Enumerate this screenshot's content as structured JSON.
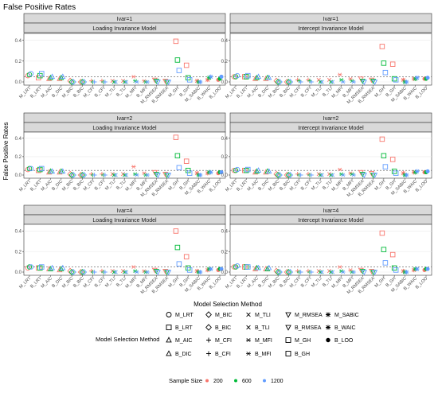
{
  "chart_data": {
    "type": "scatter",
    "title": "False Positive Rates",
    "xlabel": "Model Selection Method",
    "ylabel": "False Positive Rates",
    "ylim": [
      0,
      0.45
    ],
    "yticks": [
      "0.0",
      "0.2",
      "0.4"
    ],
    "reference_line": 0.05,
    "categories": [
      "M_LRT",
      "B_LRT",
      "M_AIC",
      "B_DIC",
      "M_BIC",
      "B_BIC",
      "M_CFI",
      "B_CFI",
      "M_TLI",
      "B_TLI",
      "M_MFI",
      "B_MFI",
      "M_RMSEA",
      "B_RMSEA",
      "M_GH",
      "B_GH",
      "M_SABIC",
      "B_WAIC",
      "B_LOO"
    ],
    "sample_sizes": [
      {
        "label": "200",
        "color": "#f8766d"
      },
      {
        "label": "600",
        "color": "#00ba38"
      },
      {
        "label": "1200",
        "color": "#619cff"
      }
    ],
    "panels": [
      {
        "strip_top": "Ivar=1",
        "strip_bottom": "Loading Invariance Model",
        "values": {
          "200": [
            0.06,
            0.04,
            0.03,
            0.03,
            0.01,
            0.0,
            0.01,
            0.01,
            0.01,
            0.01,
            0.05,
            0.01,
            0.02,
            0.01,
            0.39,
            0.16,
            0.01,
            0.02,
            0.02
          ],
          "600": [
            0.07,
            0.06,
            0.04,
            0.04,
            0.0,
            0.0,
            0.0,
            0.0,
            0.0,
            0.0,
            0.01,
            0.0,
            0.01,
            0.0,
            0.21,
            0.04,
            0.0,
            0.04,
            0.03
          ],
          "1200": [
            0.08,
            0.08,
            0.05,
            0.05,
            0.0,
            0.0,
            0.0,
            0.0,
            0.0,
            0.0,
            0.0,
            0.0,
            0.0,
            0.0,
            0.11,
            0.02,
            0.0,
            0.05,
            0.05
          ]
        }
      },
      {
        "strip_top": "Ivar=1",
        "strip_bottom": "Intercept Invariance Model",
        "values": {
          "200": [
            0.05,
            0.05,
            0.03,
            0.03,
            0.01,
            0.0,
            0.02,
            0.02,
            0.02,
            0.02,
            0.07,
            0.03,
            0.03,
            0.02,
            0.34,
            0.17,
            0.02,
            0.03,
            0.03
          ],
          "600": [
            0.05,
            0.05,
            0.04,
            0.04,
            0.0,
            0.0,
            0.01,
            0.01,
            0.0,
            0.0,
            0.02,
            0.01,
            0.01,
            0.01,
            0.18,
            0.03,
            0.0,
            0.03,
            0.03
          ],
          "1200": [
            0.06,
            0.06,
            0.05,
            0.04,
            0.0,
            0.0,
            0.0,
            0.0,
            0.0,
            0.0,
            0.0,
            0.0,
            0.0,
            0.0,
            0.09,
            0.02,
            0.0,
            0.04,
            0.04
          ]
        }
      },
      {
        "strip_top": "Ivar=2",
        "strip_bottom": "Loading Invariance Model",
        "values": {
          "200": [
            0.06,
            0.05,
            0.03,
            0.03,
            0.01,
            0.0,
            0.01,
            0.01,
            0.01,
            0.01,
            0.09,
            0.02,
            0.03,
            0.01,
            0.41,
            0.15,
            0.02,
            0.02,
            0.02
          ],
          "600": [
            0.07,
            0.06,
            0.04,
            0.04,
            0.0,
            0.0,
            0.0,
            0.0,
            0.0,
            0.0,
            0.01,
            0.0,
            0.01,
            0.0,
            0.21,
            0.05,
            0.0,
            0.03,
            0.03
          ],
          "1200": [
            0.07,
            0.07,
            0.04,
            0.04,
            0.0,
            0.0,
            0.0,
            0.0,
            0.0,
            0.0,
            0.0,
            0.0,
            0.0,
            0.0,
            0.08,
            0.02,
            0.0,
            0.03,
            0.03
          ]
        }
      },
      {
        "strip_top": "Ivar=2",
        "strip_bottom": "Intercept Invariance Model",
        "values": {
          "200": [
            0.05,
            0.05,
            0.03,
            0.03,
            0.01,
            0.0,
            0.01,
            0.01,
            0.01,
            0.01,
            0.06,
            0.02,
            0.03,
            0.02,
            0.39,
            0.17,
            0.02,
            0.03,
            0.03
          ],
          "600": [
            0.05,
            0.05,
            0.04,
            0.04,
            0.0,
            0.0,
            0.0,
            0.0,
            0.0,
            0.0,
            0.01,
            0.01,
            0.01,
            0.0,
            0.21,
            0.04,
            0.0,
            0.03,
            0.03
          ],
          "1200": [
            0.06,
            0.06,
            0.05,
            0.04,
            0.0,
            0.0,
            0.0,
            0.0,
            0.0,
            0.0,
            0.0,
            0.0,
            0.0,
            0.0,
            0.09,
            0.02,
            0.0,
            0.04,
            0.04
          ]
        }
      },
      {
        "strip_top": "Ivar=4",
        "strip_bottom": "Loading Invariance Model",
        "values": {
          "200": [
            0.04,
            0.04,
            0.03,
            0.02,
            0.01,
            0.0,
            0.01,
            0.01,
            0.01,
            0.01,
            0.05,
            0.01,
            0.02,
            0.01,
            0.4,
            0.15,
            0.01,
            0.02,
            0.02
          ],
          "600": [
            0.05,
            0.04,
            0.03,
            0.03,
            0.0,
            0.0,
            0.0,
            0.0,
            0.0,
            0.0,
            0.01,
            0.0,
            0.01,
            0.0,
            0.24,
            0.04,
            0.0,
            0.03,
            0.03
          ],
          "1200": [
            0.05,
            0.05,
            0.04,
            0.04,
            0.0,
            0.0,
            0.0,
            0.0,
            0.0,
            0.0,
            0.0,
            0.0,
            0.0,
            0.0,
            0.08,
            0.02,
            0.0,
            0.03,
            0.03
          ]
        }
      },
      {
        "strip_top": "Ivar=4",
        "strip_bottom": "Intercept Invariance Model",
        "values": {
          "200": [
            0.05,
            0.05,
            0.03,
            0.03,
            0.01,
            0.0,
            0.01,
            0.01,
            0.01,
            0.01,
            0.05,
            0.02,
            0.02,
            0.01,
            0.38,
            0.17,
            0.01,
            0.02,
            0.02
          ],
          "600": [
            0.05,
            0.05,
            0.04,
            0.03,
            0.0,
            0.0,
            0.0,
            0.0,
            0.0,
            0.0,
            0.01,
            0.0,
            0.01,
            0.0,
            0.22,
            0.04,
            0.0,
            0.03,
            0.03
          ],
          "1200": [
            0.06,
            0.05,
            0.04,
            0.04,
            0.0,
            0.0,
            0.0,
            0.0,
            0.0,
            0.0,
            0.0,
            0.0,
            0.0,
            0.0,
            0.09,
            0.02,
            0.0,
            0.03,
            0.03
          ]
        }
      }
    ],
    "legend": {
      "shape_title": "Model Selection Method",
      "shape_items": [
        "M_LRT",
        "M_BIC",
        "M_TLI",
        "M_RMSEA",
        "M_SABIC",
        "B_LRT",
        "B_BIC",
        "B_TLI",
        "B_RMSEA",
        "B_WAIC",
        "M_AIC",
        "M_CFI",
        "M_MFI",
        "M_GH",
        "B_LOO",
        "B_DIC",
        "B_CFI",
        "B_MFI",
        "B_GH"
      ],
      "color_title": "Sample Size",
      "color_items": [
        "200",
        "600",
        "1200"
      ]
    }
  }
}
